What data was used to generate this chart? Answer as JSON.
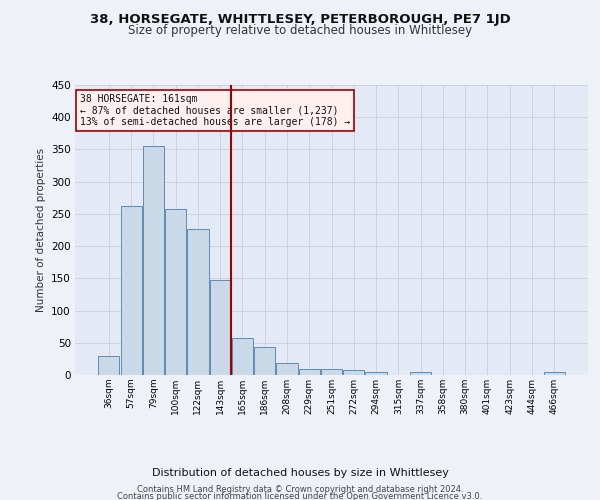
{
  "title_line1": "38, HORSEGATE, WHITTLESEY, PETERBOROUGH, PE7 1JD",
  "title_line2": "Size of property relative to detached houses in Whittlesey",
  "xlabel": "Distribution of detached houses by size in Whittlesey",
  "ylabel": "Number of detached properties",
  "footnote1": "Contains HM Land Registry data © Crown copyright and database right 2024.",
  "footnote2": "Contains public sector information licensed under the Open Government Licence v3.0.",
  "annotation_line1": "38 HORSEGATE: 161sqm",
  "annotation_line2": "← 87% of detached houses are smaller (1,237)",
  "annotation_line3": "13% of semi-detached houses are larger (178) →",
  "bar_labels": [
    "36sqm",
    "57sqm",
    "79sqm",
    "100sqm",
    "122sqm",
    "143sqm",
    "165sqm",
    "186sqm",
    "208sqm",
    "229sqm",
    "251sqm",
    "272sqm",
    "294sqm",
    "315sqm",
    "337sqm",
    "358sqm",
    "380sqm",
    "401sqm",
    "423sqm",
    "444sqm",
    "466sqm"
  ],
  "bar_values": [
    30,
    262,
    355,
    258,
    226,
    147,
    57,
    43,
    18,
    10,
    10,
    7,
    5,
    0,
    4,
    0,
    0,
    0,
    0,
    0,
    4
  ],
  "bar_color": "#c9d9e8",
  "bar_edge_color": "#5b8db8",
  "vline_x": 5.5,
  "vline_color": "#a00000",
  "background_color": "#eef2f8",
  "plot_bg_color": "#e4eaf5",
  "grid_color": "#c8d0de",
  "ylim": [
    0,
    450
  ],
  "yticks": [
    0,
    50,
    100,
    150,
    200,
    250,
    300,
    350,
    400,
    450
  ],
  "annotation_box_color": "#fff0f0",
  "annotation_box_edge": "#a00000",
  "title1_fontsize": 9.5,
  "title2_fontsize": 8.5
}
